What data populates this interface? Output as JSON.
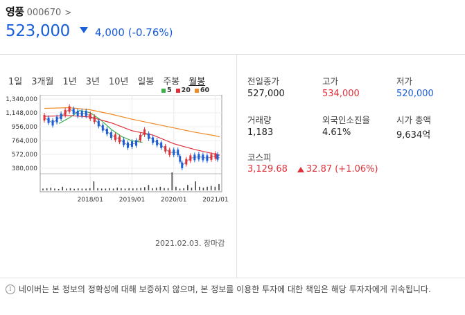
{
  "stock": {
    "name": "영풍",
    "code": "000670",
    "price": "523,000",
    "change": "4,000 (-0.76%)",
    "direction": "down"
  },
  "tabs": [
    {
      "label": "1일"
    },
    {
      "label": "3개월"
    },
    {
      "label": "1년"
    },
    {
      "label": "3년"
    },
    {
      "label": "10년"
    },
    {
      "label": "일봉"
    },
    {
      "label": "주봉"
    },
    {
      "label": "월봉",
      "active": true
    }
  ],
  "legend": [
    {
      "label": "5",
      "color": "#3cb44b"
    },
    {
      "label": "20",
      "color": "#e0303a"
    },
    {
      "label": "60",
      "color": "#f08a24"
    }
  ],
  "timestamp": "2021.02.03. 장마감",
  "info": {
    "prev_close_label": "전일종가",
    "prev_close": "527,000",
    "high_label": "고가",
    "high": "534,000",
    "low_label": "저가",
    "low": "520,000",
    "volume_label": "거래량",
    "volume": "1,183",
    "foreign_label": "외국인소진율",
    "foreign": "4.61%",
    "mcap_label": "시가 총액",
    "mcap": "9,634억"
  },
  "kospi": {
    "label": "코스피",
    "value": "3,129.68",
    "change": "32.87 (+1.06%)"
  },
  "disclaimer": "네이버는 본 정보의 정확성에 대해 보증하지 않으며, 본 정보를 이용한 투자에 대한 책임은 해당 투자자에게 귀속됩니다.",
  "chart_data": {
    "type": "line",
    "y_ticks": [
      "1,340,000",
      "1,148,000",
      "956,000",
      "764,000",
      "572,000",
      "380,000"
    ],
    "y_tick_values": [
      1340000,
      1148000,
      956000,
      764000,
      572000,
      380000
    ],
    "x_ticks": [
      "2018/01",
      "2019/01",
      "2020/01",
      "2021/01"
    ],
    "series": [
      {
        "name": "5",
        "color": "#3cb44b",
        "x": [
          2017.25,
          2017.5,
          2017.75,
          2018.0,
          2018.25,
          2018.5,
          2018.75,
          2019.0,
          2019.25
        ],
        "y": [
          1000000,
          1080000,
          1180000,
          1150000,
          1050000,
          920000,
          820000,
          760000,
          740000
        ]
      },
      {
        "name": "20",
        "color": "#e0303a",
        "x": [
          2016.9,
          2017.5,
          2018.0,
          2018.5,
          2019.0,
          2019.5,
          2020.0,
          2020.5,
          2021.0,
          2021.1
        ],
        "y": [
          1100000,
          1110000,
          1090000,
          1010000,
          900000,
          840000,
          720000,
          640000,
          575000,
          560000
        ]
      },
      {
        "name": "60",
        "color": "#f08a24",
        "x": [
          2016.9,
          2017.5,
          2018.0,
          2018.5,
          2019.0,
          2019.5,
          2020.0,
          2020.5,
          2021.0,
          2021.1
        ],
        "y": [
          1210000,
          1220000,
          1190000,
          1130000,
          1060000,
          1000000,
          940000,
          880000,
          830000,
          815000
        ]
      },
      {
        "name": "price",
        "color": "#333333",
        "x": [
          2016.9,
          2017.1,
          2017.3,
          2017.5,
          2017.7,
          2017.9,
          2018.1,
          2018.3,
          2018.5,
          2018.7,
          2018.9,
          2019.1,
          2019.3,
          2019.5,
          2019.7,
          2019.9,
          2020.1,
          2020.2,
          2020.4,
          2020.6,
          2020.8,
          2021.0,
          2021.1
        ],
        "y": [
          1080000,
          1010000,
          1100000,
          1200000,
          1140000,
          1140000,
          1060000,
          940000,
          840000,
          780000,
          700000,
          730000,
          880000,
          770000,
          700000,
          600000,
          600000,
          420000,
          520000,
          540000,
          520000,
          550000,
          523000
        ]
      }
    ],
    "volume": [
      0.1,
      0.12,
      0.15,
      0.1,
      0.08,
      0.2,
      0.1,
      0.12,
      0.09,
      0.11,
      0.1,
      0.1,
      0.12,
      0.5,
      0.12,
      0.1,
      0.1,
      0.12,
      0.1,
      0.15,
      0.12,
      0.1,
      0.12,
      0.11,
      0.12,
      0.14,
      0.18,
      0.3,
      0.12,
      0.15,
      0.2,
      0.13,
      0.12,
      1.0,
      0.2,
      0.1,
      0.12,
      0.3,
      0.15,
      0.5,
      0.2,
      0.15,
      0.2,
      0.25,
      0.2,
      0.35
    ]
  }
}
